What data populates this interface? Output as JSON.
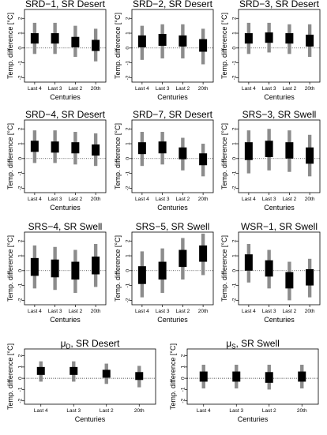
{
  "chart_data": [
    {
      "type": "box",
      "title": "SRD−1, SR Desert",
      "xlabel": "Centuries",
      "ylabel": "Temp. difference [°C]",
      "categories": [
        "Last 4",
        "Last 3",
        "Last 2",
        "20th"
      ],
      "ylim": [
        -2.3,
        2.6
      ],
      "yticks": [
        -2,
        -1,
        0,
        1,
        2
      ],
      "box": [
        [
          0.3,
          1.0
        ],
        [
          0.3,
          1.0
        ],
        [
          0.05,
          0.75
        ],
        [
          -0.2,
          0.55
        ]
      ],
      "whisker": [
        [
          -0.4,
          1.7
        ],
        [
          -0.4,
          1.7
        ],
        [
          -0.6,
          1.5
        ],
        [
          -0.9,
          1.3
        ]
      ]
    },
    {
      "type": "box",
      "title": "SRD−2, SR Desert",
      "xlabel": "Centuries",
      "ylabel": "Temp. difference [°C]",
      "categories": [
        "Last 4",
        "Last 3",
        "Last 2",
        "20th"
      ],
      "ylim": [
        -2.3,
        2.6
      ],
      "yticks": [
        -2,
        -1,
        0,
        1,
        2
      ],
      "box": [
        [
          0.05,
          0.85
        ],
        [
          0.15,
          0.95
        ],
        [
          0.1,
          0.85
        ],
        [
          -0.25,
          0.6
        ]
      ],
      "whisker": [
        [
          -0.8,
          1.5
        ],
        [
          -0.7,
          1.6
        ],
        [
          -0.7,
          1.6
        ],
        [
          -1.1,
          1.3
        ]
      ]
    },
    {
      "type": "box",
      "title": "SRD−3, SR Desert",
      "xlabel": "Centuries",
      "ylabel": "Temp. difference [°C]",
      "categories": [
        "Last 4",
        "Last 3",
        "Last 2",
        "20th"
      ],
      "ylim": [
        -2.3,
        2.6
      ],
      "yticks": [
        -2,
        -1,
        0,
        1,
        2
      ],
      "box": [
        [
          0.3,
          1.0
        ],
        [
          0.35,
          1.05
        ],
        [
          0.3,
          1.0
        ],
        [
          0.1,
          0.9
        ]
      ],
      "whisker": [
        [
          -0.4,
          1.7
        ],
        [
          -0.3,
          1.7
        ],
        [
          -0.4,
          1.6
        ],
        [
          -0.6,
          1.6
        ]
      ]
    },
    {
      "type": "box",
      "title": "SRD−4, SR Desert",
      "xlabel": "Centuries",
      "ylabel": "Temp. difference [°C]",
      "categories": [
        "Last 4",
        "Last 3",
        "Last 2",
        "20th"
      ],
      "ylim": [
        -2.3,
        2.6
      ],
      "yticks": [
        -2,
        -1,
        0,
        1,
        2
      ],
      "box": [
        [
          0.45,
          1.2
        ],
        [
          0.4,
          1.15
        ],
        [
          0.35,
          1.1
        ],
        [
          0.2,
          0.95
        ]
      ],
      "whisker": [
        [
          -0.3,
          1.9
        ],
        [
          -0.3,
          1.9
        ],
        [
          -0.4,
          1.8
        ],
        [
          -0.5,
          1.7
        ]
      ]
    },
    {
      "type": "box",
      "title": "SRD−7, SR Desert",
      "xlabel": "Centuries",
      "ylabel": "Temp. difference [°C]",
      "categories": [
        "Last 4",
        "Last 3",
        "Last 2",
        "20th"
      ],
      "ylim": [
        -2.3,
        2.6
      ],
      "yticks": [
        -2,
        -1,
        0,
        1,
        2
      ],
      "box": [
        [
          0.3,
          1.1
        ],
        [
          0.35,
          1.15
        ],
        [
          -0.05,
          0.75
        ],
        [
          -0.45,
          0.35
        ]
      ],
      "whisker": [
        [
          -0.5,
          1.8
        ],
        [
          -0.4,
          1.8
        ],
        [
          -0.8,
          1.4
        ],
        [
          -1.2,
          1.0
        ]
      ]
    },
    {
      "type": "box",
      "title": "SRS−3, SR Swell",
      "xlabel": "Centuries",
      "ylabel": "Temp. difference [°C]",
      "categories": [
        "Last 4",
        "Last 3",
        "Last 2",
        "20th"
      ],
      "ylim": [
        -2.3,
        2.6
      ],
      "yticks": [
        -2,
        -1,
        0,
        1,
        2
      ],
      "box": [
        [
          -0.1,
          1.1
        ],
        [
          0.1,
          1.2
        ],
        [
          0.0,
          1.1
        ],
        [
          -0.35,
          0.75
        ]
      ],
      "whisker": [
        [
          -1.0,
          1.9
        ],
        [
          -0.8,
          2.0
        ],
        [
          -0.9,
          1.9
        ],
        [
          -1.2,
          1.6
        ]
      ]
    },
    {
      "type": "box",
      "title": "SRS−4, SR Swell",
      "xlabel": "Centuries",
      "ylabel": "Temp. difference [°C]",
      "categories": [
        "Last 4",
        "Last 3",
        "Last 2",
        "20th"
      ],
      "ylim": [
        -2.3,
        2.6
      ],
      "yticks": [
        -2,
        -1,
        0,
        1,
        2
      ],
      "box": [
        [
          -0.35,
          0.85
        ],
        [
          -0.45,
          0.75
        ],
        [
          -0.6,
          0.6
        ],
        [
          -0.25,
          0.95
        ]
      ],
      "whisker": [
        [
          -1.2,
          1.7
        ],
        [
          -1.3,
          1.6
        ],
        [
          -1.5,
          1.4
        ],
        [
          -1.1,
          1.8
        ]
      ]
    },
    {
      "type": "box",
      "title": "SRS−5, SR Swell",
      "xlabel": "Centuries",
      "ylabel": "Temp. difference [°C]",
      "categories": [
        "Last 4",
        "Last 3",
        "Last 2",
        "20th"
      ],
      "ylim": [
        -2.3,
        2.6
      ],
      "yticks": [
        -2,
        -1,
        0,
        1,
        2
      ],
      "box": [
        [
          -0.9,
          0.3
        ],
        [
          -0.6,
          0.6
        ],
        [
          0.25,
          1.4
        ],
        [
          0.6,
          1.7
        ]
      ],
      "whisker": [
        [
          -1.8,
          1.3
        ],
        [
          -1.5,
          1.5
        ],
        [
          -0.6,
          2.2
        ],
        [
          -0.3,
          2.5
        ]
      ]
    },
    {
      "type": "box",
      "title": "WSR−1, SR Swell",
      "xlabel": "Centuries",
      "ylabel": "Temp. difference [°C]",
      "categories": [
        "Last 4",
        "Last 3",
        "Last 2",
        "20th"
      ],
      "ylim": [
        -2.3,
        2.6
      ],
      "yticks": [
        -2,
        -1,
        0,
        1,
        2
      ],
      "box": [
        [
          0.0,
          1.1
        ],
        [
          -0.4,
          0.7
        ],
        [
          -1.2,
          -0.1
        ],
        [
          -1.0,
          0.1
        ]
      ],
      "whisker": [
        [
          -0.8,
          1.8
        ],
        [
          -1.2,
          1.4
        ],
        [
          -2.0,
          0.6
        ],
        [
          -1.8,
          0.8
        ]
      ]
    },
    {
      "type": "box",
      "title": "μ",
      "title_sub": "D",
      "title_rest": ", SR Desert",
      "xlabel": "Centuries",
      "ylabel": "Temp. difference [°C]",
      "categories": [
        "Last 4",
        "Last 3",
        "Last 2",
        "20th"
      ],
      "ylim": [
        -2.3,
        2.6
      ],
      "yticks": [
        -2,
        -1,
        0,
        1,
        2
      ],
      "box": [
        [
          0.3,
          1.0
        ],
        [
          0.3,
          1.0
        ],
        [
          0.05,
          0.75
        ],
        [
          -0.15,
          0.55
        ]
      ],
      "whisker": [
        [
          -0.3,
          1.5
        ],
        [
          -0.3,
          1.5
        ],
        [
          -0.5,
          1.3
        ],
        [
          -0.8,
          1.1
        ]
      ]
    },
    {
      "type": "box",
      "title": "μ",
      "title_sub": "S",
      "title_rest": ", SR Swell",
      "xlabel": "Centuries",
      "ylabel": "Temp. difference [°C]",
      "categories": [
        "Last 4",
        "Last 3",
        "Last 2",
        "20th"
      ],
      "ylim": [
        -2.3,
        2.6
      ],
      "yticks": [
        -2,
        -1,
        0,
        1,
        2
      ],
      "box": [
        [
          -0.3,
          0.6
        ],
        [
          -0.3,
          0.6
        ],
        [
          -0.4,
          0.55
        ],
        [
          -0.3,
          0.6
        ]
      ],
      "whisker": [
        [
          -0.9,
          1.2
        ],
        [
          -0.9,
          1.2
        ],
        [
          -1.0,
          1.2
        ],
        [
          -0.9,
          1.2
        ]
      ]
    }
  ]
}
